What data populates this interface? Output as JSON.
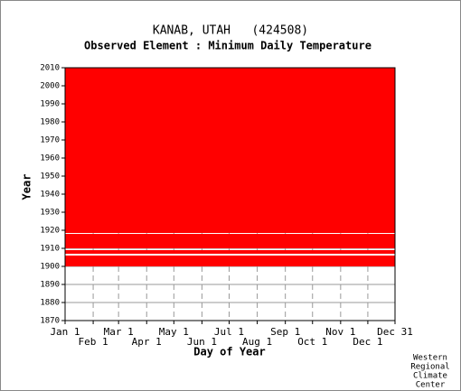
{
  "chart_data": {
    "type": "coverage",
    "title": "KANAB, UTAH   (424508)",
    "subtitle": "Observed Element : Minimum Daily Temperature",
    "x_label": "Day of Year",
    "y_label": "Year",
    "credit": [
      "Western",
      "Regional",
      "Climate",
      "Center"
    ],
    "color": "#ff0000",
    "xlim": [
      1,
      365
    ],
    "xticks": [
      {
        "value": 1,
        "label": "Jan 1"
      },
      {
        "value": 32,
        "label": "Feb 1"
      },
      {
        "value": 60,
        "label": "Mar 1"
      },
      {
        "value": 91,
        "label": "Apr 1"
      },
      {
        "value": 121,
        "label": "May 1"
      },
      {
        "value": 152,
        "label": "Jun 1"
      },
      {
        "value": 182,
        "label": "Jul 1"
      },
      {
        "value": 213,
        "label": "Aug 1"
      },
      {
        "value": 244,
        "label": "Sep 1"
      },
      {
        "value": 274,
        "label": "Oct 1"
      },
      {
        "value": 305,
        "label": "Nov 1"
      },
      {
        "value": 335,
        "label": "Dec 1"
      },
      {
        "value": 365,
        "label": "Dec 31"
      }
    ],
    "ylim": [
      1870,
      2010
    ],
    "yticks": [
      1870,
      1880,
      1890,
      1900,
      1910,
      1920,
      1930,
      1940,
      1950,
      1960,
      1970,
      1980,
      1990,
      2000,
      2010
    ],
    "bands": [
      {
        "start": 1900,
        "end": 1906
      },
      {
        "start": 1907,
        "end": 1909
      },
      {
        "start": 1910,
        "end": 1918
      },
      {
        "start": 1918.5,
        "end": 2010
      }
    ]
  }
}
